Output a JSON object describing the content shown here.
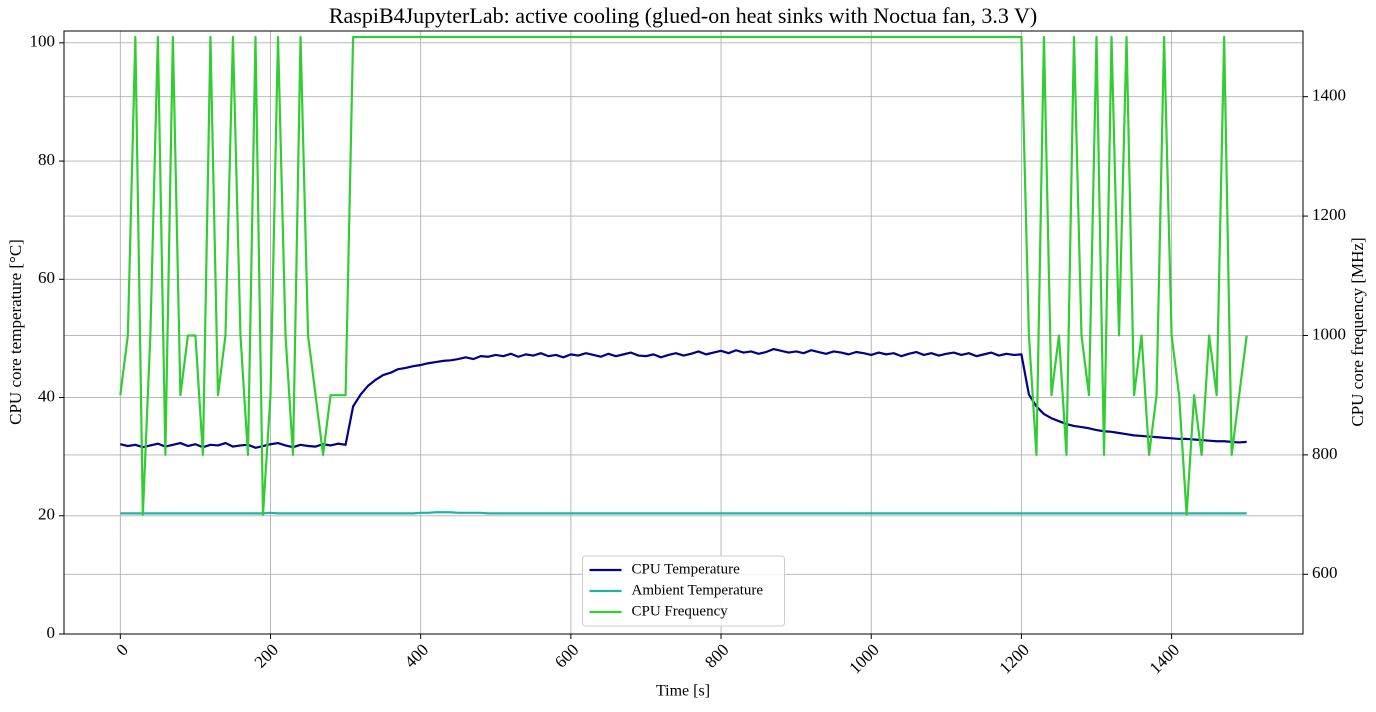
{
  "chart_data": {
    "type": "line",
    "title": "RaspiB4JupyterLab: active cooling (glued-on heat sinks with Noctua fan, 3.3 V)",
    "x_label": "Time [s]",
    "y_label": "CPU core temperature [°C]",
    "y2_label": "CPU core frequency [MHz]",
    "xlim": [
      -75,
      1575
    ],
    "ylim": [
      0,
      102
    ],
    "y2lim": [
      500,
      1510
    ],
    "xticks": [
      0,
      200,
      400,
      600,
      800,
      1000,
      1200,
      1400
    ],
    "yticks": [
      0,
      20,
      40,
      60,
      80,
      100
    ],
    "y2ticks": [
      600,
      800,
      1000,
      1200,
      1400
    ],
    "grid": true,
    "legend": "lower center",
    "x": [
      0,
      10,
      20,
      30,
      40,
      50,
      60,
      70,
      80,
      90,
      100,
      110,
      120,
      130,
      140,
      150,
      160,
      170,
      180,
      190,
      200,
      210,
      220,
      230,
      240,
      250,
      260,
      270,
      280,
      290,
      300,
      310,
      320,
      330,
      340,
      350,
      360,
      370,
      380,
      390,
      400,
      410,
      420,
      430,
      440,
      450,
      460,
      470,
      480,
      490,
      500,
      510,
      520,
      530,
      540,
      550,
      560,
      570,
      580,
      590,
      600,
      610,
      620,
      630,
      640,
      650,
      660,
      670,
      680,
      690,
      700,
      710,
      720,
      730,
      740,
      750,
      760,
      770,
      780,
      790,
      800,
      810,
      820,
      830,
      840,
      850,
      860,
      870,
      880,
      890,
      900,
      910,
      920,
      930,
      940,
      950,
      960,
      970,
      980,
      990,
      1000,
      1010,
      1020,
      1030,
      1040,
      1050,
      1060,
      1070,
      1080,
      1090,
      1100,
      1110,
      1120,
      1130,
      1140,
      1150,
      1160,
      1170,
      1180,
      1190,
      1200,
      1210,
      1220,
      1230,
      1240,
      1250,
      1260,
      1270,
      1280,
      1290,
      1300,
      1310,
      1320,
      1330,
      1340,
      1350,
      1360,
      1370,
      1380,
      1390,
      1400,
      1410,
      1420,
      1430,
      1440,
      1450,
      1460,
      1470,
      1480,
      1490,
      1500
    ],
    "series": [
      {
        "name": "CPU Temperature",
        "color": "#00008b",
        "values": [
          32.1,
          31.8,
          32.0,
          31.6,
          31.9,
          32.2,
          31.7,
          32.0,
          32.3,
          31.8,
          32.1,
          31.6,
          32.0,
          31.9,
          32.3,
          31.7,
          31.9,
          32.0,
          31.5,
          31.8,
          32.1,
          32.3,
          31.9,
          31.6,
          32.0,
          31.8,
          31.7,
          32.1,
          31.9,
          32.2,
          32.0,
          38.5,
          40.5,
          42.0,
          43.0,
          43.8,
          44.2,
          44.8,
          45.0,
          45.3,
          45.5,
          45.8,
          46.0,
          46.2,
          46.3,
          46.5,
          46.8,
          46.5,
          47.0,
          46.9,
          47.2,
          47.0,
          47.4,
          46.9,
          47.3,
          47.1,
          47.5,
          47.0,
          47.2,
          46.8,
          47.3,
          47.1,
          47.5,
          47.2,
          46.9,
          47.4,
          47.0,
          47.3,
          47.6,
          47.1,
          47.0,
          47.3,
          46.8,
          47.2,
          47.5,
          47.1,
          47.4,
          47.8,
          47.3,
          47.6,
          47.9,
          47.5,
          48.0,
          47.6,
          47.8,
          47.4,
          47.7,
          48.2,
          47.9,
          47.6,
          47.8,
          47.5,
          48.0,
          47.7,
          47.4,
          47.8,
          47.6,
          47.3,
          47.7,
          47.5,
          47.2,
          47.6,
          47.3,
          47.5,
          47.0,
          47.4,
          47.7,
          47.2,
          47.5,
          47.1,
          47.4,
          47.6,
          47.2,
          47.5,
          47.0,
          47.3,
          47.6,
          47.1,
          47.4,
          47.2,
          47.3,
          40.5,
          38.5,
          37.2,
          36.5,
          36.0,
          35.5,
          35.2,
          35.0,
          34.8,
          34.5,
          34.3,
          34.2,
          34.0,
          33.8,
          33.6,
          33.5,
          33.4,
          33.3,
          33.2,
          33.1,
          33.0,
          33.0,
          32.9,
          32.8,
          32.7,
          32.6,
          32.6,
          32.5,
          32.4,
          32.5
        ]
      },
      {
        "name": "Ambient Temperature",
        "color": "#20b2aa",
        "values": [
          20.4,
          20.4,
          20.4,
          20.4,
          20.4,
          20.4,
          20.4,
          20.4,
          20.4,
          20.4,
          20.4,
          20.4,
          20.4,
          20.4,
          20.4,
          20.4,
          20.4,
          20.4,
          20.4,
          20.4,
          20.5,
          20.4,
          20.4,
          20.4,
          20.4,
          20.4,
          20.4,
          20.4,
          20.4,
          20.4,
          20.4,
          20.4,
          20.4,
          20.4,
          20.4,
          20.4,
          20.4,
          20.4,
          20.4,
          20.4,
          20.5,
          20.5,
          20.6,
          20.6,
          20.6,
          20.5,
          20.5,
          20.5,
          20.5,
          20.4,
          20.4,
          20.4,
          20.4,
          20.4,
          20.4,
          20.4,
          20.4,
          20.4,
          20.4,
          20.4,
          20.4,
          20.4,
          20.4,
          20.4,
          20.4,
          20.4,
          20.4,
          20.4,
          20.4,
          20.4,
          20.4,
          20.4,
          20.4,
          20.4,
          20.4,
          20.4,
          20.4,
          20.4,
          20.4,
          20.4,
          20.4,
          20.4,
          20.4,
          20.4,
          20.4,
          20.4,
          20.4,
          20.4,
          20.4,
          20.4,
          20.4,
          20.4,
          20.4,
          20.4,
          20.4,
          20.4,
          20.4,
          20.4,
          20.4,
          20.4,
          20.4,
          20.4,
          20.4,
          20.4,
          20.4,
          20.4,
          20.4,
          20.4,
          20.4,
          20.4,
          20.4,
          20.4,
          20.4,
          20.4,
          20.4,
          20.4,
          20.4,
          20.4,
          20.4,
          20.4,
          20.4,
          20.4,
          20.4,
          20.4,
          20.4,
          20.4,
          20.4,
          20.4,
          20.4,
          20.4,
          20.4,
          20.4,
          20.4,
          20.4,
          20.4,
          20.4,
          20.4,
          20.4,
          20.4,
          20.4,
          20.4,
          20.4,
          20.4,
          20.4,
          20.4,
          20.4,
          20.4,
          20.4,
          20.4,
          20.4,
          20.4
        ]
      },
      {
        "name": "CPU Frequency",
        "color": "#32cd32",
        "axis": "y2",
        "values": [
          900,
          1000,
          1500,
          700,
          1000,
          1500,
          800,
          1500,
          900,
          1000,
          1000,
          800,
          1500,
          900,
          1000,
          1500,
          1000,
          800,
          1500,
          700,
          900,
          1500,
          1000,
          800,
          1500,
          1000,
          900,
          800,
          900,
          900,
          900,
          1500,
          1500,
          1500,
          1500,
          1500,
          1500,
          1500,
          1500,
          1500,
          1500,
          1500,
          1500,
          1500,
          1500,
          1500,
          1500,
          1500,
          1500,
          1500,
          1500,
          1500,
          1500,
          1500,
          1500,
          1500,
          1500,
          1500,
          1500,
          1500,
          1500,
          1500,
          1500,
          1500,
          1500,
          1500,
          1500,
          1500,
          1500,
          1500,
          1500,
          1500,
          1500,
          1500,
          1500,
          1500,
          1500,
          1500,
          1500,
          1500,
          1500,
          1500,
          1500,
          1500,
          1500,
          1500,
          1500,
          1500,
          1500,
          1500,
          1500,
          1500,
          1500,
          1500,
          1500,
          1500,
          1500,
          1500,
          1500,
          1500,
          1500,
          1500,
          1500,
          1500,
          1500,
          1500,
          1500,
          1500,
          1500,
          1500,
          1500,
          1500,
          1500,
          1500,
          1500,
          1500,
          1500,
          1500,
          1500,
          1500,
          1500,
          1000,
          800,
          1500,
          900,
          1000,
          800,
          1500,
          1000,
          900,
          1500,
          800,
          1500,
          1000,
          1500,
          900,
          1000,
          800,
          900,
          1500,
          1000,
          900,
          700,
          900,
          800,
          1000,
          900,
          1500,
          800,
          900,
          1000
        ]
      }
    ]
  }
}
